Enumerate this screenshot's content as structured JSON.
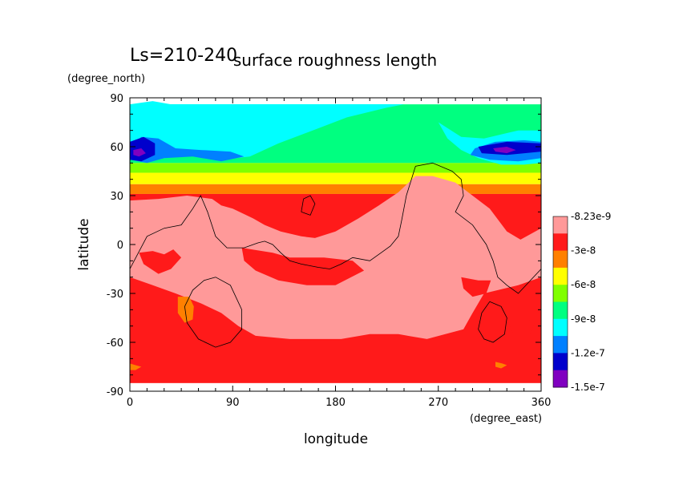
{
  "chart_data": {
    "type": "heatmap",
    "title": "surface roughness length",
    "subtitle": "Ls=210-240",
    "xlabel": "longitude",
    "ylabel": "latitude",
    "x_units": "(degree_east)",
    "y_units": "(degree_north)",
    "xlim": [
      0,
      360
    ],
    "ylim": [
      -90,
      90
    ],
    "x_ticks": [
      0,
      90,
      180,
      270,
      360
    ],
    "y_ticks": [
      90,
      60,
      30,
      0,
      -30,
      -60,
      -90
    ],
    "grid": false,
    "legend_position": "right",
    "colorbar": {
      "labels": [
        "-8.23e-9",
        "-3e-8",
        "-6e-8",
        "-9e-8",
        "-1.2e-7",
        "-1.5e-7"
      ],
      "levels": [
        -8.23e-09,
        -3e-08,
        -6e-08,
        -9e-08,
        -1.2e-07,
        -1.5e-07
      ],
      "colors": [
        "#ff9999",
        "#ff1a1a",
        "#ff8000",
        "#ffff00",
        "#80ff00",
        "#00ff80",
        "#00ffff",
        "#0080ff",
        "#0000cc",
        "#8000c0"
      ]
    },
    "bands": [
      {
        "color": "#00ff80",
        "top": 86,
        "bottom": 50
      },
      {
        "color": "#80ff00",
        "top": 50,
        "bottom": 44
      },
      {
        "color": "#ffff00",
        "top": 44,
        "bottom": 37
      },
      {
        "color": "#ff8000",
        "top": 37,
        "bottom": 31
      },
      {
        "color": "#ff1a1a",
        "top": 31,
        "bottom": -85
      }
    ],
    "regions": [
      {
        "color": "#00ffff",
        "points": [
          [
            0,
            86
          ],
          [
            20,
            88
          ],
          [
            60,
            83
          ],
          [
            100,
            79
          ],
          [
            140,
            81
          ],
          [
            200,
            84
          ],
          [
            230,
            86
          ],
          [
            0,
            86
          ]
        ]
      },
      {
        "color": "#00ffff",
        "points": [
          [
            0,
            86
          ],
          [
            0,
            52
          ],
          [
            30,
            53
          ],
          [
            60,
            55
          ],
          [
            80,
            52
          ],
          [
            105,
            54
          ],
          [
            130,
            62
          ],
          [
            160,
            70
          ],
          [
            190,
            78
          ],
          [
            225,
            84
          ],
          [
            240,
            86
          ]
        ]
      },
      {
        "color": "#00ffff",
        "points": [
          [
            270,
            75
          ],
          [
            290,
            66
          ],
          [
            310,
            65
          ],
          [
            340,
            70
          ],
          [
            360,
            70
          ],
          [
            360,
            50
          ],
          [
            345,
            49
          ],
          [
            325,
            49
          ],
          [
            305,
            53
          ],
          [
            290,
            58
          ],
          [
            278,
            65
          ]
        ]
      },
      {
        "color": "#0080ff",
        "points": [
          [
            0,
            60
          ],
          [
            10,
            66
          ],
          [
            25,
            65
          ],
          [
            40,
            59
          ],
          [
            62,
            58
          ],
          [
            88,
            57
          ],
          [
            100,
            54
          ],
          [
            80,
            51
          ],
          [
            55,
            54
          ],
          [
            30,
            53
          ],
          [
            15,
            50
          ],
          [
            0,
            52
          ]
        ]
      },
      {
        "color": "#0080ff",
        "points": [
          [
            302,
            59
          ],
          [
            320,
            63
          ],
          [
            345,
            64
          ],
          [
            360,
            63
          ],
          [
            360,
            53
          ],
          [
            340,
            51
          ],
          [
            315,
            52
          ],
          [
            298,
            55
          ]
        ]
      },
      {
        "color": "#0000cc",
        "points": [
          [
            0,
            63
          ],
          [
            12,
            66
          ],
          [
            22,
            62
          ],
          [
            22,
            55
          ],
          [
            10,
            51
          ],
          [
            0,
            52
          ]
        ]
      },
      {
        "color": "#0000cc",
        "points": [
          [
            305,
            60
          ],
          [
            330,
            63
          ],
          [
            360,
            62
          ],
          [
            360,
            57
          ],
          [
            330,
            55
          ],
          [
            308,
            56
          ]
        ]
      },
      {
        "color": "#8000c0",
        "points": [
          [
            3,
            58
          ],
          [
            10,
            59
          ],
          [
            14,
            56
          ],
          [
            8,
            54
          ],
          [
            3,
            55
          ]
        ]
      },
      {
        "color": "#8000c0",
        "points": [
          [
            318,
            59
          ],
          [
            330,
            60
          ],
          [
            338,
            58
          ],
          [
            330,
            56
          ],
          [
            320,
            57
          ]
        ]
      },
      {
        "color": "#ff9999",
        "points": [
          [
            0,
            27
          ],
          [
            25,
            28
          ],
          [
            50,
            30
          ],
          [
            72,
            28
          ],
          [
            80,
            24
          ],
          [
            90,
            22
          ],
          [
            108,
            16
          ],
          [
            118,
            12
          ],
          [
            132,
            8
          ],
          [
            150,
            5
          ],
          [
            162,
            4
          ],
          [
            180,
            8
          ],
          [
            200,
            16
          ],
          [
            218,
            24
          ],
          [
            235,
            32
          ],
          [
            250,
            42
          ],
          [
            265,
            42
          ],
          [
            285,
            38
          ],
          [
            300,
            30
          ],
          [
            315,
            22
          ],
          [
            330,
            8
          ],
          [
            342,
            3
          ],
          [
            360,
            10
          ],
          [
            360,
            -20
          ],
          [
            340,
            -25
          ],
          [
            310,
            -30
          ],
          [
            300,
            -42
          ],
          [
            292,
            -52
          ],
          [
            260,
            -58
          ],
          [
            235,
            -55
          ],
          [
            210,
            -55
          ],
          [
            185,
            -58
          ],
          [
            160,
            -58
          ],
          [
            140,
            -58
          ],
          [
            110,
            -56
          ],
          [
            95,
            -50
          ],
          [
            80,
            -42
          ],
          [
            62,
            -36
          ],
          [
            40,
            -30
          ],
          [
            20,
            -25
          ],
          [
            0,
            -20
          ]
        ]
      },
      {
        "color": "#ff1a1a",
        "points": [
          [
            8,
            -5
          ],
          [
            20,
            -4
          ],
          [
            30,
            -6
          ],
          [
            38,
            -3
          ],
          [
            45,
            -8
          ],
          [
            36,
            -15
          ],
          [
            25,
            -18
          ],
          [
            12,
            -12
          ]
        ]
      },
      {
        "color": "#ff1a1a",
        "points": [
          [
            98,
            -2
          ],
          [
            125,
            -5
          ],
          [
            140,
            -8
          ],
          [
            170,
            -8
          ],
          [
            195,
            -10
          ],
          [
            205,
            -16
          ],
          [
            180,
            -25
          ],
          [
            155,
            -25
          ],
          [
            130,
            -22
          ],
          [
            110,
            -16
          ],
          [
            100,
            -10
          ]
        ]
      },
      {
        "color": "#ff1a1a",
        "points": [
          [
            290,
            -20
          ],
          [
            305,
            -22
          ],
          [
            316,
            -22
          ],
          [
            312,
            -30
          ],
          [
            300,
            -32
          ],
          [
            292,
            -27
          ]
        ]
      },
      {
        "color": "#ff1a1a",
        "points": [
          [
            330,
            -45
          ],
          [
            345,
            -46
          ],
          [
            355,
            -47
          ],
          [
            350,
            -55
          ],
          [
            335,
            -54
          ]
        ]
      },
      {
        "color": "#ff8000",
        "points": [
          [
            42,
            -32
          ],
          [
            52,
            -32
          ],
          [
            56,
            -38
          ],
          [
            55,
            -46
          ],
          [
            48,
            -48
          ],
          [
            42,
            -42
          ]
        ]
      },
      {
        "color": "#ff8000",
        "points": [
          [
            0,
            -73
          ],
          [
            5,
            -74
          ],
          [
            10,
            -75
          ],
          [
            5,
            -77
          ],
          [
            0,
            -77
          ]
        ]
      },
      {
        "color": "#ff8000",
        "points": [
          [
            320,
            -72
          ],
          [
            326,
            -73
          ],
          [
            330,
            -74
          ],
          [
            325,
            -76
          ],
          [
            320,
            -75
          ]
        ]
      }
    ],
    "contour_lines": [
      [
        [
          0,
          -15
        ],
        [
          15,
          5
        ],
        [
          30,
          10
        ],
        [
          45,
          12
        ],
        [
          55,
          22
        ],
        [
          62,
          30
        ],
        [
          68,
          20
        ],
        [
          75,
          5
        ],
        [
          85,
          -2
        ],
        [
          100,
          -2
        ],
        [
          112,
          1
        ],
        [
          118,
          2
        ],
        [
          125,
          0
        ],
        [
          132,
          -5
        ],
        [
          140,
          -10
        ],
        [
          150,
          -12
        ],
        [
          165,
          -14
        ],
        [
          175,
          -15
        ],
        [
          185,
          -12
        ],
        [
          195,
          -8
        ],
        [
          210,
          -10
        ],
        [
          220,
          -5
        ],
        [
          228,
          -1
        ],
        [
          235,
          5
        ],
        [
          238,
          15
        ],
        [
          242,
          30
        ],
        [
          250,
          48
        ],
        [
          265,
          50
        ],
        [
          282,
          45
        ],
        [
          290,
          40
        ],
        [
          292,
          30
        ],
        [
          285,
          20
        ],
        [
          300,
          12
        ],
        [
          312,
          0
        ],
        [
          318,
          -10
        ],
        [
          322,
          -20
        ],
        [
          330,
          -25
        ],
        [
          340,
          -30
        ],
        [
          360,
          -15
        ]
      ],
      [
        [
          150,
          20
        ],
        [
          158,
          18
        ],
        [
          162,
          25
        ],
        [
          158,
          30
        ],
        [
          152,
          28
        ],
        [
          150,
          20
        ]
      ],
      [
        [
          75,
          -20
        ],
        [
          88,
          -25
        ],
        [
          98,
          -40
        ],
        [
          98,
          -52
        ],
        [
          88,
          -60
        ],
        [
          75,
          -63
        ],
        [
          60,
          -58
        ],
        [
          50,
          -48
        ],
        [
          48,
          -38
        ],
        [
          55,
          -28
        ],
        [
          65,
          -22
        ],
        [
          75,
          -20
        ]
      ],
      [
        [
          315,
          -35
        ],
        [
          325,
          -38
        ],
        [
          330,
          -45
        ],
        [
          328,
          -55
        ],
        [
          318,
          -60
        ],
        [
          310,
          -58
        ],
        [
          305,
          -52
        ],
        [
          308,
          -42
        ],
        [
          315,
          -35
        ]
      ]
    ]
  }
}
